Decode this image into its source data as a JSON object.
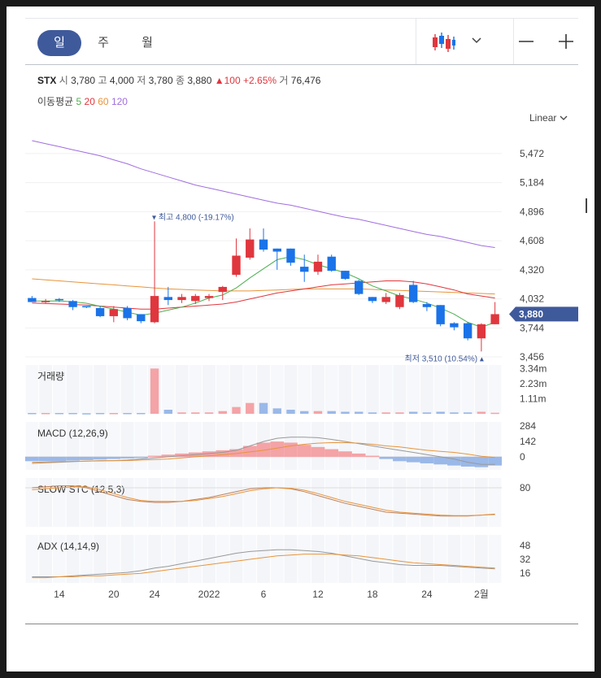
{
  "toolbar": {
    "periods": [
      "일",
      "주",
      "월"
    ],
    "active_period": "일",
    "chart_type_icon": "candlestick-icon",
    "zoom_out_icon": "minus-icon",
    "zoom_in_icon": "plus-icon"
  },
  "quote": {
    "symbol": "STX",
    "open_label": "시",
    "open": "3,780",
    "high_label": "고",
    "high": "4,000",
    "low_label": "저",
    "low": "3,780",
    "close_label": "종",
    "close": "3,880",
    "change": "▲100",
    "change_pct": "+2.65%",
    "volume_label": "거",
    "volume": "76,476"
  },
  "ma_legend": {
    "label": "이동평균",
    "periods": [
      "5",
      "20",
      "60",
      "120"
    ],
    "colors": [
      "#4caf50",
      "#e0363d",
      "#e8943a",
      "#a06ee0"
    ]
  },
  "scale_label": "Linear",
  "colors": {
    "up": "#e0363d",
    "down": "#1a73e8",
    "price_tag": "#3f5a9b",
    "volume_up": "#f4a3a6",
    "volume_down": "#9ab8e8",
    "macd_line": "#999999",
    "signal_line": "#e8943a",
    "active_period_bg": "#3f5a9b"
  },
  "chart_data": {
    "type": "candlestick",
    "x_tick_labels": [
      "14",
      "20",
      "24",
      "2022",
      "6",
      "12",
      "18",
      "24",
      "2월"
    ],
    "price_axis_ticks": [
      "5,472",
      "5,184",
      "4,896",
      "4,608",
      "4,320",
      "4,032",
      "3,744",
      "3,456"
    ],
    "price_ylim": [
      3400,
      5600
    ],
    "current_price_tag": "3,880",
    "high_annotation": "최고 4,800 (-19.17%)",
    "low_annotation": "최저 3,510 (10.54%)",
    "candles": [
      {
        "o": 4040,
        "h": 4060,
        "l": 4000,
        "c": 4000
      },
      {
        "o": 4000,
        "h": 4030,
        "l": 3990,
        "c": 4010
      },
      {
        "o": 4030,
        "h": 4040,
        "l": 4000,
        "c": 4020
      },
      {
        "o": 4010,
        "h": 4020,
        "l": 3920,
        "c": 3950
      },
      {
        "o": 3960,
        "h": 3960,
        "l": 3940,
        "c": 3950
      },
      {
        "o": 3940,
        "h": 3960,
        "l": 3850,
        "c": 3860
      },
      {
        "o": 3860,
        "h": 3960,
        "l": 3800,
        "c": 3930
      },
      {
        "o": 3940,
        "h": 3960,
        "l": 3820,
        "c": 3840
      },
      {
        "o": 3880,
        "h": 3880,
        "l": 3790,
        "c": 3810
      },
      {
        "o": 3800,
        "h": 4800,
        "l": 3790,
        "c": 4060
      },
      {
        "o": 4050,
        "h": 4150,
        "l": 3970,
        "c": 4020
      },
      {
        "o": 4020,
        "h": 4080,
        "l": 3990,
        "c": 4050
      },
      {
        "o": 4010,
        "h": 4080,
        "l": 3980,
        "c": 4060
      },
      {
        "o": 4040,
        "h": 4080,
        "l": 4010,
        "c": 4060
      },
      {
        "o": 4100,
        "h": 4160,
        "l": 4020,
        "c": 4150
      },
      {
        "o": 4270,
        "h": 4630,
        "l": 4250,
        "c": 4460
      },
      {
        "o": 4440,
        "h": 4730,
        "l": 4420,
        "c": 4620
      },
      {
        "o": 4620,
        "h": 4730,
        "l": 4500,
        "c": 4520
      },
      {
        "o": 4530,
        "h": 4530,
        "l": 4320,
        "c": 4500
      },
      {
        "o": 4530,
        "h": 4530,
        "l": 4360,
        "c": 4390
      },
      {
        "o": 4350,
        "h": 4470,
        "l": 4200,
        "c": 4300
      },
      {
        "o": 4300,
        "h": 4470,
        "l": 4270,
        "c": 4400
      },
      {
        "o": 4450,
        "h": 4470,
        "l": 4300,
        "c": 4310
      },
      {
        "o": 4310,
        "h": 4310,
        "l": 4220,
        "c": 4230
      },
      {
        "o": 4210,
        "h": 4220,
        "l": 4070,
        "c": 4080
      },
      {
        "o": 4050,
        "h": 4050,
        "l": 3990,
        "c": 4010
      },
      {
        "o": 4000,
        "h": 4090,
        "l": 3980,
        "c": 4050
      },
      {
        "o": 3950,
        "h": 4090,
        "l": 3930,
        "c": 4070
      },
      {
        "o": 4170,
        "h": 4210,
        "l": 3990,
        "c": 4000
      },
      {
        "o": 3980,
        "h": 4000,
        "l": 3910,
        "c": 3950
      },
      {
        "o": 3970,
        "h": 3970,
        "l": 3760,
        "c": 3780
      },
      {
        "o": 3790,
        "h": 3800,
        "l": 3720,
        "c": 3750
      },
      {
        "o": 3790,
        "h": 3800,
        "l": 3620,
        "c": 3640
      },
      {
        "o": 3640,
        "h": 3790,
        "l": 3510,
        "c": 3780
      },
      {
        "o": 3780,
        "h": 4000,
        "l": 3780,
        "c": 3880
      }
    ],
    "ma5": [
      4010,
      4010,
      4012,
      4002,
      3988,
      3958,
      3930,
      3900,
      3870,
      3890,
      3920,
      3950,
      3990,
      4040,
      4070,
      4140,
      4240,
      4330,
      4420,
      4450,
      4420,
      4370,
      4330,
      4290,
      4230,
      4160,
      4110,
      4060,
      4030,
      3990,
      3940,
      3880,
      3800,
      3750,
      3800
    ],
    "ma20": [
      3990,
      3985,
      3980,
      3975,
      3970,
      3960,
      3950,
      3940,
      3930,
      3930,
      3940,
      3950,
      3960,
      3970,
      3980,
      4000,
      4030,
      4060,
      4090,
      4110,
      4130,
      4150,
      4170,
      4180,
      4190,
      4200,
      4210,
      4210,
      4200,
      4180,
      4150,
      4120,
      4080,
      4060,
      4040
    ],
    "ma60": [
      4230,
      4220,
      4210,
      4200,
      4190,
      4180,
      4170,
      4160,
      4150,
      4140,
      4130,
      4125,
      4120,
      4115,
      4110,
      4110,
      4110,
      4115,
      4120,
      4125,
      4130,
      4130,
      4130,
      4130,
      4130,
      4125,
      4120,
      4115,
      4110,
      4105,
      4100,
      4095,
      4090,
      4085,
      4080
    ],
    "ma120": [
      5600,
      5570,
      5540,
      5510,
      5480,
      5450,
      5410,
      5370,
      5320,
      5280,
      5240,
      5200,
      5160,
      5130,
      5100,
      5070,
      5040,
      5010,
      4980,
      4960,
      4930,
      4900,
      4870,
      4840,
      4820,
      4790,
      4760,
      4730,
      4700,
      4670,
      4650,
      4620,
      4590,
      4560,
      4540
    ],
    "volume": {
      "label": "거래량",
      "ticks": [
        "3.34m",
        "2.23m",
        "1.11m"
      ],
      "ylim": [
        0,
        3600000
      ],
      "values": [
        60000,
        60000,
        60000,
        60000,
        40000,
        60000,
        60000,
        60000,
        60000,
        3340000,
        300000,
        100000,
        100000,
        100000,
        200000,
        500000,
        800000,
        800000,
        400000,
        300000,
        200000,
        200000,
        200000,
        150000,
        150000,
        100000,
        100000,
        100000,
        150000,
        100000,
        150000,
        100000,
        100000,
        150000,
        76476
      ]
    },
    "macd": {
      "label": "MACD (12,26,9)",
      "ticks": [
        "284",
        "142",
        "0"
      ],
      "ylim": [
        -120,
        320
      ],
      "histogram": [
        -40,
        -40,
        -40,
        -35,
        -30,
        -25,
        -20,
        -15,
        -5,
        10,
        20,
        30,
        40,
        50,
        60,
        70,
        100,
        130,
        140,
        130,
        110,
        90,
        70,
        50,
        30,
        10,
        -20,
        -40,
        -50,
        -60,
        -70,
        -80,
        -90,
        -95,
        -80
      ],
      "macd_line": [
        -60,
        -55,
        -50,
        -45,
        -40,
        -35,
        -35,
        -30,
        -20,
        -10,
        0,
        10,
        20,
        30,
        40,
        60,
        100,
        140,
        170,
        180,
        180,
        175,
        160,
        140,
        120,
        100,
        80,
        60,
        40,
        20,
        0,
        -20,
        -50,
        -70,
        -70
      ],
      "signal_line": [
        -50,
        -48,
        -45,
        -42,
        -40,
        -38,
        -36,
        -34,
        -30,
        -25,
        -20,
        -10,
        0,
        10,
        20,
        30,
        45,
        60,
        80,
        100,
        115,
        125,
        130,
        130,
        125,
        115,
        100,
        90,
        75,
        60,
        50,
        40,
        25,
        5,
        -5
      ]
    },
    "slow_stc": {
      "label": "SLOW STC (12,5,3)",
      "ticks": [
        "80"
      ],
      "ylim": [
        0,
        100
      ],
      "k": [
        80,
        82,
        84,
        84,
        80,
        72,
        64,
        56,
        52,
        50,
        50,
        52,
        56,
        60,
        66,
        72,
        78,
        80,
        80,
        78,
        72,
        64,
        56,
        48,
        42,
        36,
        30,
        28,
        26,
        24,
        22,
        22,
        22,
        24,
        26
      ],
      "d": [
        76,
        78,
        80,
        82,
        82,
        76,
        68,
        60,
        54,
        52,
        52,
        52,
        54,
        58,
        62,
        68,
        74,
        78,
        80,
        79,
        75,
        68,
        60,
        52,
        46,
        40,
        34,
        30,
        28,
        26,
        24,
        23,
        23,
        24,
        25
      ]
    },
    "adx": {
      "label": "ADX (14,14,9)",
      "ticks": [
        "48",
        "32",
        "16"
      ],
      "ylim": [
        5,
        60
      ],
      "adx_line": [
        12,
        12,
        12,
        13,
        14,
        15,
        16,
        17,
        19,
        22,
        24,
        27,
        30,
        33,
        36,
        39,
        41,
        42,
        43,
        43,
        42,
        41,
        39,
        36,
        33,
        30,
        28,
        26,
        25,
        25,
        25,
        24,
        23,
        22,
        21
      ],
      "signal": [
        11,
        11,
        12,
        12,
        13,
        13,
        14,
        15,
        16,
        18,
        20,
        22,
        24,
        26,
        28,
        30,
        32,
        34,
        36,
        37,
        38,
        38,
        38,
        37,
        36,
        34,
        32,
        30,
        28,
        27,
        26,
        25,
        24,
        23,
        22
      ]
    }
  }
}
